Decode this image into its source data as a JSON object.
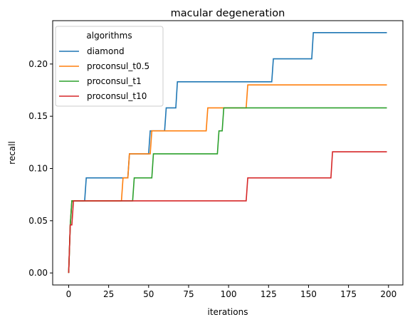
{
  "chart_data": {
    "type": "line",
    "title": "macular degeneration",
    "xlabel": "iterations",
    "ylabel": "recall",
    "xlim": [
      -10,
      209
    ],
    "ylim": [
      -0.0115,
      0.2415
    ],
    "xticks": [
      0,
      25,
      50,
      75,
      100,
      125,
      150,
      175,
      200
    ],
    "xtick_labels": [
      "0",
      "25",
      "50",
      "75",
      "100",
      "125",
      "150",
      "175",
      "200"
    ],
    "yticks": [
      0.0,
      0.05,
      0.1,
      0.15,
      0.2
    ],
    "ytick_labels": [
      "0.00",
      "0.05",
      "0.10",
      "0.15",
      "0.20"
    ],
    "grid": false,
    "legend": {
      "title": "algorithms",
      "placement": "top-left"
    },
    "series": [
      {
        "name": "diamond",
        "color": "#1f77b4",
        "points": [
          [
            0,
            0
          ],
          [
            1,
            0.046
          ],
          [
            2,
            0.069
          ],
          [
            10,
            0.069
          ],
          [
            11,
            0.091
          ],
          [
            37,
            0.091
          ],
          [
            38,
            0.114
          ],
          [
            50,
            0.114
          ],
          [
            51,
            0.136
          ],
          [
            60,
            0.136
          ],
          [
            61,
            0.158
          ],
          [
            67,
            0.158
          ],
          [
            68,
            0.183
          ],
          [
            127,
            0.183
          ],
          [
            128,
            0.205
          ],
          [
            152,
            0.205
          ],
          [
            153,
            0.23
          ],
          [
            199,
            0.23
          ]
        ]
      },
      {
        "name": "proconsul_t0.5",
        "color": "#ff7f0e",
        "points": [
          [
            0,
            0
          ],
          [
            1,
            0.046
          ],
          [
            2,
            0.069
          ],
          [
            33,
            0.069
          ],
          [
            34,
            0.091
          ],
          [
            37,
            0.091
          ],
          [
            38,
            0.114
          ],
          [
            51,
            0.114
          ],
          [
            52,
            0.136
          ],
          [
            86,
            0.136
          ],
          [
            87,
            0.158
          ],
          [
            111,
            0.158
          ],
          [
            112,
            0.18
          ],
          [
            199,
            0.18
          ]
        ]
      },
      {
        "name": "proconsul_t1",
        "color": "#2ca02c",
        "points": [
          [
            0,
            0
          ],
          [
            1,
            0.046
          ],
          [
            2,
            0.069
          ],
          [
            40,
            0.069
          ],
          [
            41,
            0.091
          ],
          [
            52,
            0.091
          ],
          [
            53,
            0.114
          ],
          [
            93,
            0.114
          ],
          [
            94,
            0.136
          ],
          [
            96,
            0.136
          ],
          [
            97,
            0.158
          ],
          [
            199,
            0.158
          ]
        ]
      },
      {
        "name": "proconsul_t10",
        "color": "#d62728",
        "points": [
          [
            0,
            0
          ],
          [
            1,
            0.046
          ],
          [
            2,
            0.046
          ],
          [
            3,
            0.069
          ],
          [
            111,
            0.069
          ],
          [
            112,
            0.091
          ],
          [
            164,
            0.091
          ],
          [
            165,
            0.116
          ],
          [
            199,
            0.116
          ]
        ]
      }
    ]
  }
}
